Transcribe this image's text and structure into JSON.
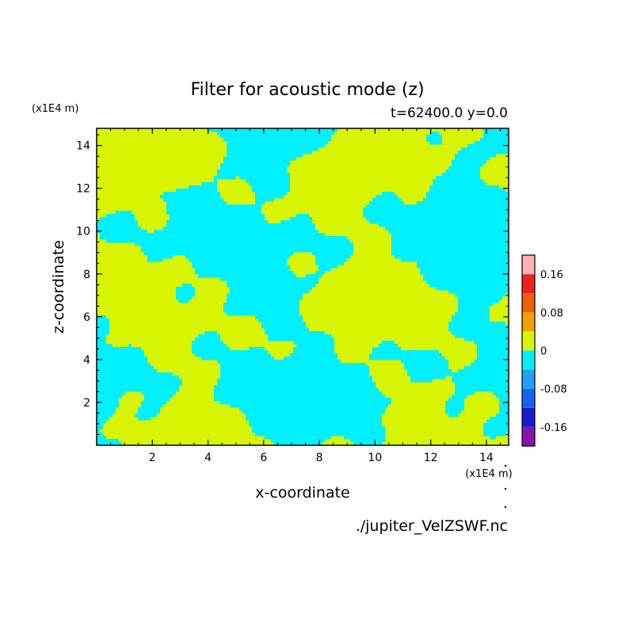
{
  "chart_data": {
    "type": "heatmap",
    "title": "Filter for acoustic mode (z)",
    "subtitle": "t=62400.0 y=0.0",
    "xlabel": "x-coordinate",
    "ylabel": "z-coordinate",
    "x_unit": "(x1E4 m)",
    "y_unit": "(x1E4 m)",
    "xlim": [
      0,
      14.8
    ],
    "ylim": [
      0,
      14.8
    ],
    "x_ticks": [
      2,
      4,
      6,
      8,
      10,
      12,
      14
    ],
    "y_ticks": [
      2,
      4,
      6,
      8,
      10,
      12,
      14
    ],
    "grid": false,
    "colorbar": {
      "levels": [
        -0.2,
        -0.16,
        -0.12,
        -0.08,
        -0.04,
        0,
        0.04,
        0.08,
        0.12,
        0.16,
        0.2
      ],
      "colors": [
        "#8a12a8",
        "#1a1ad2",
        "#1464f0",
        "#1ea0ff",
        "#00f0ff",
        "#d7f500",
        "#f6a000",
        "#f06000",
        "#f02020",
        "#ffb0b0"
      ],
      "tick_labels": [
        "-0.16",
        "-0.08",
        "0",
        "0.08",
        "0.16"
      ],
      "tick_values": [
        -0.16,
        -0.08,
        0,
        0.08,
        0.16
      ]
    },
    "field": {
      "description_classes": [
        "negative (cyan)",
        "positive (yellow-green)"
      ],
      "negative_color": "#00f0ff",
      "positive_color": "#d7f500"
    }
  },
  "source_file": "./jupiter_VelZSWF.nc"
}
